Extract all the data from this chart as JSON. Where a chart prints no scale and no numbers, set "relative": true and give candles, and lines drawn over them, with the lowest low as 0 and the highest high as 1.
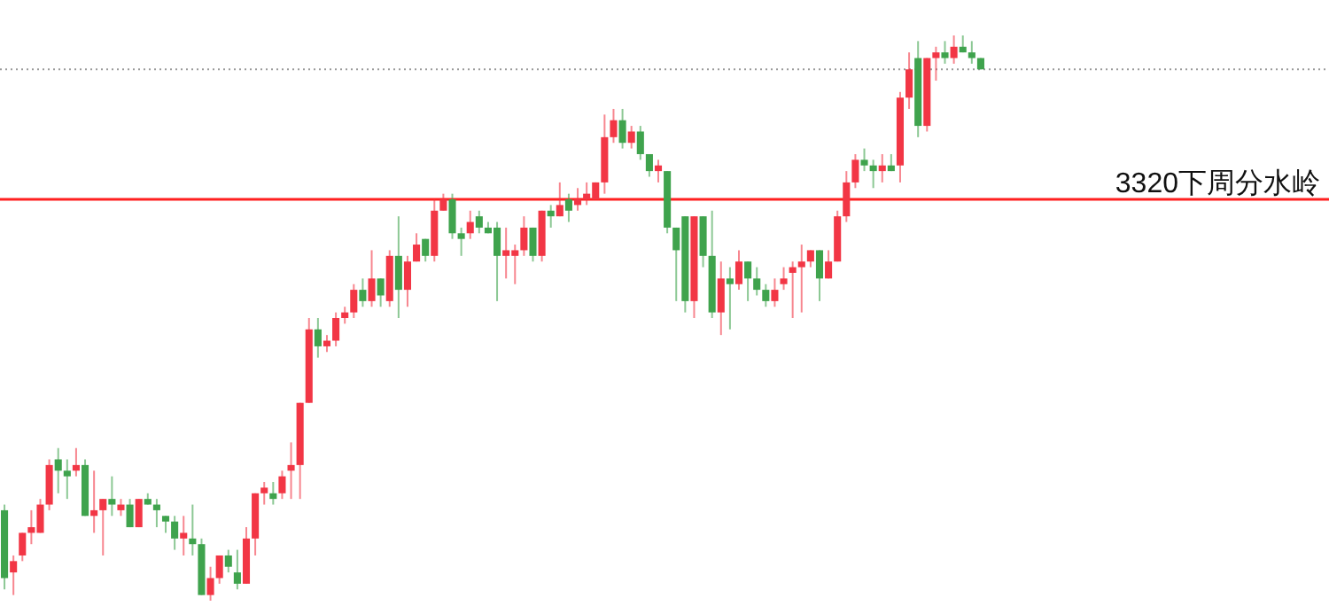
{
  "chart_data": {
    "type": "candlestick",
    "relative": true,
    "categories": [
      null,
      null,
      null,
      null,
      null,
      null,
      null,
      null,
      null,
      null,
      null,
      null,
      null,
      null,
      null,
      null,
      null,
      null,
      null,
      null,
      null,
      null,
      null,
      null,
      null,
      null,
      null,
      null,
      null,
      null,
      null,
      null,
      null,
      null,
      null,
      null,
      null,
      null,
      null,
      null,
      null,
      null,
      null,
      null,
      null,
      null,
      null,
      null,
      null,
      null,
      null,
      null,
      null,
      null,
      null,
      null,
      null,
      null,
      null,
      null,
      null,
      null,
      null,
      null,
      null,
      null,
      null,
      null,
      null,
      null,
      null,
      null,
      null,
      null,
      null,
      null,
      null,
      null,
      null,
      null,
      null,
      null,
      null,
      null,
      null,
      null,
      null,
      null,
      null,
      null,
      null,
      null,
      null,
      null,
      null,
      null,
      null,
      null,
      null,
      null,
      null,
      null,
      null,
      null,
      null,
      null,
      null,
      null,
      null,
      null
    ],
    "ohlc": [
      [
        0.16,
        0.17,
        0.02,
        0.04
      ],
      [
        0.05,
        0.08,
        0.01,
        0.07
      ],
      [
        0.08,
        0.12,
        0.07,
        0.12
      ],
      [
        0.12,
        0.16,
        0.1,
        0.13
      ],
      [
        0.12,
        0.18,
        0.12,
        0.17
      ],
      [
        0.17,
        0.25,
        0.16,
        0.24
      ],
      [
        0.25,
        0.27,
        0.19,
        0.23
      ],
      [
        0.23,
        0.25,
        0.18,
        0.22
      ],
      [
        0.23,
        0.27,
        0.22,
        0.24
      ],
      [
        0.24,
        0.25,
        0.15,
        0.15
      ],
      [
        0.15,
        0.23,
        0.12,
        0.16
      ],
      [
        0.16,
        0.18,
        0.08,
        0.18
      ],
      [
        0.18,
        0.22,
        0.15,
        0.17
      ],
      [
        0.16,
        0.18,
        0.15,
        0.17
      ],
      [
        0.17,
        0.18,
        0.13,
        0.13
      ],
      [
        0.13,
        0.18,
        0.13,
        0.18
      ],
      [
        0.18,
        0.19,
        0.17,
        0.17
      ],
      [
        0.17,
        0.18,
        0.13,
        0.16
      ],
      [
        0.15,
        0.15,
        0.12,
        0.14
      ],
      [
        0.14,
        0.15,
        0.09,
        0.11
      ],
      [
        0.11,
        0.15,
        0.08,
        0.12
      ],
      [
        0.11,
        0.17,
        0.08,
        0.1
      ],
      [
        0.1,
        0.11,
        0.01,
        0.01
      ],
      [
        0.01,
        0.06,
        0,
        0.04
      ],
      [
        0.04,
        0.08,
        0.03,
        0.08
      ],
      [
        0.08,
        0.09,
        0.05,
        0.06
      ],
      [
        0.05,
        0.09,
        0.02,
        0.03
      ],
      [
        0.03,
        0.13,
        0.03,
        0.11
      ],
      [
        0.11,
        0.19,
        0.08,
        0.19
      ],
      [
        0.19,
        0.21,
        0.17,
        0.2
      ],
      [
        0.19,
        0.21,
        0.17,
        0.18
      ],
      [
        0.19,
        0.23,
        0.18,
        0.22
      ],
      [
        0.23,
        0.28,
        0.18,
        0.24
      ],
      [
        0.24,
        0.35,
        0.18,
        0.35
      ],
      [
        0.35,
        0.5,
        0.35,
        0.48
      ],
      [
        0.48,
        0.5,
        0.43,
        0.45
      ],
      [
        0.45,
        0.47,
        0.44,
        0.46
      ],
      [
        0.46,
        0.51,
        0.45,
        0.5
      ],
      [
        0.5,
        0.52,
        0.49,
        0.51
      ],
      [
        0.51,
        0.56,
        0.5,
        0.55
      ],
      [
        0.55,
        0.57,
        0.52,
        0.53
      ],
      [
        0.53,
        0.62,
        0.52,
        0.57
      ],
      [
        0.57,
        0.57,
        0.52,
        0.54
      ],
      [
        0.53,
        0.62,
        0.52,
        0.61
      ],
      [
        0.61,
        0.68,
        0.5,
        0.55
      ],
      [
        0.55,
        0.61,
        0.52,
        0.6
      ],
      [
        0.6,
        0.65,
        0.6,
        0.63
      ],
      [
        0.64,
        0.64,
        0.6,
        0.61
      ],
      [
        0.61,
        0.71,
        0.6,
        0.69
      ],
      [
        0.69,
        0.72,
        0.69,
        0.71
      ],
      [
        0.71,
        0.72,
        0.64,
        0.65
      ],
      [
        0.65,
        0.66,
        0.61,
        0.64
      ],
      [
        0.65,
        0.69,
        0.64,
        0.67
      ],
      [
        0.68,
        0.69,
        0.65,
        0.66
      ],
      [
        0.66,
        0.67,
        0.65,
        0.65
      ],
      [
        0.66,
        0.67,
        0.53,
        0.61
      ],
      [
        0.61,
        0.66,
        0.57,
        0.62
      ],
      [
        0.61,
        0.63,
        0.56,
        0.62
      ],
      [
        0.62,
        0.68,
        0.61,
        0.66
      ],
      [
        0.66,
        0.66,
        0.6,
        0.61
      ],
      [
        0.61,
        0.69,
        0.6,
        0.69
      ],
      [
        0.69,
        0.7,
        0.66,
        0.68
      ],
      [
        0.68,
        0.74,
        0.68,
        0.7
      ],
      [
        0.71,
        0.72,
        0.67,
        0.69
      ],
      [
        0.7,
        0.73,
        0.69,
        0.71
      ],
      [
        0.71,
        0.74,
        0.7,
        0.72
      ],
      [
        0.71,
        0.74,
        0.71,
        0.74
      ],
      [
        0.74,
        0.86,
        0.72,
        0.82
      ],
      [
        0.82,
        0.87,
        0.81,
        0.85
      ],
      [
        0.85,
        0.87,
        0.8,
        0.81
      ],
      [
        0.81,
        0.84,
        0.8,
        0.83
      ],
      [
        0.83,
        0.84,
        0.78,
        0.79
      ],
      [
        0.79,
        0.79,
        0.75,
        0.76
      ],
      [
        0.76,
        0.78,
        0.74,
        0.77
      ],
      [
        0.76,
        0.76,
        0.65,
        0.66
      ],
      [
        0.66,
        0.66,
        0.53,
        0.62
      ],
      [
        0.68,
        0.68,
        0.51,
        0.53
      ],
      [
        0.53,
        0.68,
        0.5,
        0.68
      ],
      [
        0.68,
        0.68,
        0.59,
        0.61
      ],
      [
        0.61,
        0.69,
        0.5,
        0.51
      ],
      [
        0.51,
        0.6,
        0.47,
        0.57
      ],
      [
        0.57,
        0.59,
        0.48,
        0.56
      ],
      [
        0.56,
        0.62,
        0.55,
        0.6
      ],
      [
        0.6,
        0.6,
        0.53,
        0.57
      ],
      [
        0.57,
        0.59,
        0.54,
        0.55
      ],
      [
        0.55,
        0.56,
        0.52,
        0.53
      ],
      [
        0.53,
        0.57,
        0.52,
        0.55
      ],
      [
        0.56,
        0.59,
        0.55,
        0.57
      ],
      [
        0.58,
        0.6,
        0.5,
        0.59
      ],
      [
        0.59,
        0.63,
        0.51,
        0.6
      ],
      [
        0.6,
        0.62,
        0.59,
        0.62
      ],
      [
        0.62,
        0.62,
        0.53,
        0.57
      ],
      [
        0.57,
        0.62,
        0.57,
        0.6
      ],
      [
        0.6,
        0.69,
        0.6,
        0.68
      ],
      [
        0.68,
        0.76,
        0.67,
        0.74
      ],
      [
        0.74,
        0.79,
        0.73,
        0.78
      ],
      [
        0.78,
        0.8,
        0.76,
        0.77
      ],
      [
        0.77,
        0.78,
        0.73,
        0.76
      ],
      [
        0.76,
        0.79,
        0.74,
        0.77
      ],
      [
        0.77,
        0.79,
        0.76,
        0.76
      ],
      [
        0.77,
        0.9,
        0.74,
        0.89
      ],
      [
        0.89,
        0.97,
        0.87,
        0.94
      ],
      [
        0.96,
        0.99,
        0.82,
        0.84
      ],
      [
        0.84,
        0.96,
        0.83,
        0.96
      ],
      [
        0.96,
        0.98,
        0.92,
        0.97
      ],
      [
        0.97,
        0.99,
        0.95,
        0.96
      ],
      [
        0.96,
        1.0,
        0.95,
        0.98
      ],
      [
        0.98,
        1.0,
        0.97,
        0.97
      ],
      [
        0.97,
        0.99,
        0.95,
        0.96
      ],
      [
        0.96,
        0.96,
        0.94,
        0.94
      ]
    ],
    "colors": [
      "#3fa34d",
      "#f23645",
      "#f23645",
      "#f23645",
      "#f23645",
      "#f23645",
      "#3fa34d",
      "#3fa34d",
      "#f23645",
      "#3fa34d",
      "#f23645",
      "#f23645",
      "#3fa34d",
      "#f23645",
      "#3fa34d",
      "#f23645",
      "#3fa34d",
      "#3fa34d",
      "#3fa34d",
      "#3fa34d",
      "#f23645",
      "#3fa34d",
      "#3fa34d",
      "#f23645",
      "#f23645",
      "#3fa34d",
      "#3fa34d",
      "#f23645",
      "#f23645",
      "#f23645",
      "#3fa34d",
      "#f23645",
      "#f23645",
      "#f23645",
      "#f23645",
      "#3fa34d",
      "#f23645",
      "#f23645",
      "#f23645",
      "#f23645",
      "#3fa34d",
      "#f23645",
      "#3fa34d",
      "#f23645",
      "#3fa34d",
      "#f23645",
      "#f23645",
      "#3fa34d",
      "#f23645",
      "#f23645",
      "#3fa34d",
      "#3fa34d",
      "#f23645",
      "#3fa34d",
      "#3fa34d",
      "#3fa34d",
      "#f23645",
      "#f23645",
      "#f23645",
      "#3fa34d",
      "#f23645",
      "#3fa34d",
      "#f23645",
      "#3fa34d",
      "#f23645",
      "#f23645",
      "#f23645",
      "#f23645",
      "#f23645",
      "#3fa34d",
      "#f23645",
      "#3fa34d",
      "#3fa34d",
      "#f23645",
      "#3fa34d",
      "#3fa34d",
      "#3fa34d",
      "#f23645",
      "#3fa34d",
      "#3fa34d",
      "#f23645",
      "#3fa34d",
      "#f23645",
      "#3fa34d",
      "#3fa34d",
      "#3fa34d",
      "#f23645",
      "#f23645",
      "#f23645",
      "#f23645",
      "#f23645",
      "#3fa34d",
      "#f23645",
      "#f23645",
      "#f23645",
      "#f23645",
      "#3fa34d",
      "#3fa34d",
      "#f23645",
      "#3fa34d",
      "#f23645",
      "#f23645",
      "#3fa34d",
      "#f23645",
      "#f23645",
      "#3fa34d",
      "#f23645",
      "#3fa34d",
      "#3fa34d",
      "#3fa34d"
    ],
    "ref_lines": [
      {
        "axis": "y",
        "value": 0.71,
        "label": "3320下周分水岭",
        "color": "#ff2020",
        "line_style": "solid"
      },
      {
        "axis": "y",
        "value": 0.94,
        "color": "#9a9a9a",
        "line_style": "dotted"
      }
    ]
  }
}
